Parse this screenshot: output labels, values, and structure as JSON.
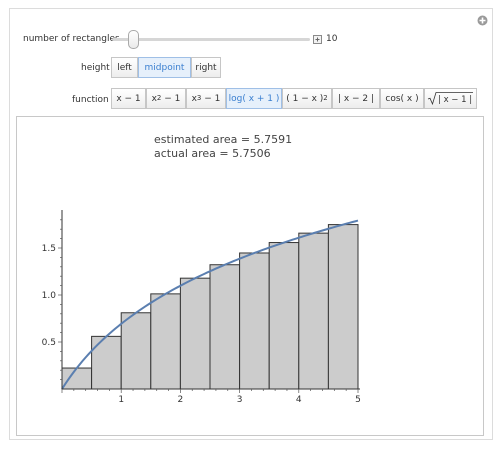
{
  "controls": {
    "rect_label": "number of rectangles",
    "rect_value": "10",
    "height_label": "height",
    "height_options": [
      "left",
      "midpoint",
      "right"
    ],
    "function_label": "function"
  },
  "readout": {
    "estimated": "estimated area = 5.7591",
    "actual": "actual area = 5.7506"
  },
  "chart_data": {
    "type": "bar",
    "rectangle_count": 10,
    "selected_height": "midpoint",
    "selected_function": "log(x + 1)",
    "x_ticks": [
      1,
      2,
      3,
      4,
      5
    ],
    "y_ticks": [
      0.5,
      1.0,
      1.5
    ],
    "x_tick_labels": [
      "1",
      "2",
      "3",
      "4",
      "5"
    ],
    "y_tick_labels": [
      "0.5",
      "1.0",
      "1.5"
    ],
    "xlim": [
      0,
      5
    ],
    "ylim": [
      0,
      1.85
    ],
    "bar_x": [
      0,
      0.5,
      1,
      1.5,
      2,
      2.5,
      3,
      3.5,
      4,
      4.5
    ],
    "bar_width": 0.5,
    "values": [
      0.223,
      0.56,
      0.811,
      1.012,
      1.179,
      1.322,
      1.447,
      1.558,
      1.658,
      1.749
    ],
    "colors": {
      "bar_fill": "#cccccc",
      "bar_stroke": "#333333",
      "curve": "#5b7fb0"
    }
  }
}
